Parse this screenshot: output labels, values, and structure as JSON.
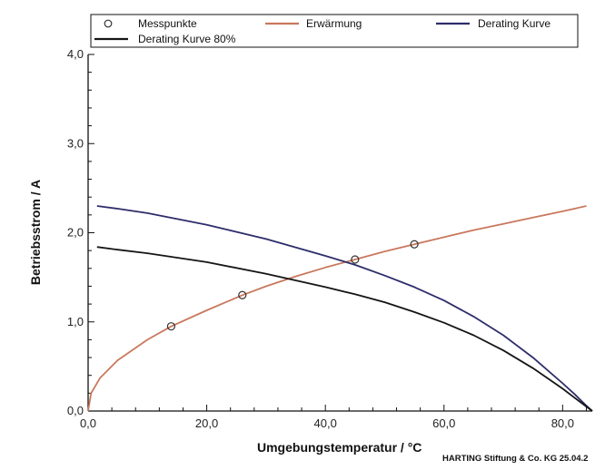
{
  "chart_data": {
    "type": "line",
    "title": "",
    "xlabel": "Umgebungstemperatur / °C",
    "ylabel": "Betriebsstrom / A",
    "xlim": [
      0,
      85
    ],
    "ylim": [
      0,
      4
    ],
    "x_ticks": [
      0,
      20,
      40,
      60,
      80
    ],
    "x_tick_labels": [
      "0,0",
      "20,0",
      "40,0",
      "60,0",
      "80,0"
    ],
    "y_ticks": [
      0,
      1,
      2,
      3,
      4
    ],
    "y_tick_labels": [
      "0,0",
      "1,0",
      "2,0",
      "3,0",
      "4,0"
    ],
    "grid": false,
    "legend_position": "top",
    "series": [
      {
        "name": "Messpunkte",
        "kind": "markers",
        "color": "#333333",
        "points": [
          [
            14,
            0.95
          ],
          [
            26,
            1.3
          ],
          [
            45,
            1.7
          ],
          [
            55,
            1.87
          ]
        ]
      },
      {
        "name": "Erwärmung",
        "kind": "line",
        "color": "#c9785d",
        "points": [
          [
            0,
            0
          ],
          [
            0.5,
            0.2
          ],
          [
            2,
            0.37
          ],
          [
            5,
            0.57
          ],
          [
            10,
            0.8
          ],
          [
            14,
            0.95
          ],
          [
            20,
            1.13
          ],
          [
            26,
            1.3
          ],
          [
            30,
            1.4
          ],
          [
            35,
            1.51
          ],
          [
            40,
            1.61
          ],
          [
            45,
            1.7
          ],
          [
            50,
            1.79
          ],
          [
            55,
            1.87
          ],
          [
            60,
            1.95
          ],
          [
            65,
            2.03
          ],
          [
            70,
            2.1
          ],
          [
            75,
            2.17
          ],
          [
            80,
            2.24
          ],
          [
            84,
            2.3
          ]
        ]
      },
      {
        "name": "Derating Kurve",
        "kind": "line",
        "color": "#2d2d6b",
        "points": [
          [
            1.5,
            2.3
          ],
          [
            5,
            2.27
          ],
          [
            10,
            2.22
          ],
          [
            20,
            2.09
          ],
          [
            30,
            1.93
          ],
          [
            40,
            1.74
          ],
          [
            45,
            1.64
          ],
          [
            50,
            1.52
          ],
          [
            55,
            1.39
          ],
          [
            60,
            1.24
          ],
          [
            65,
            1.06
          ],
          [
            70,
            0.85
          ],
          [
            75,
            0.6
          ],
          [
            80,
            0.31
          ],
          [
            82,
            0.19
          ],
          [
            84,
            0.06
          ],
          [
            85,
            0
          ]
        ]
      },
      {
        "name": "Derating Kurve 80%",
        "kind": "line",
        "color": "#151515",
        "points": [
          [
            1.5,
            1.84
          ],
          [
            5,
            1.81
          ],
          [
            10,
            1.77
          ],
          [
            20,
            1.67
          ],
          [
            30,
            1.54
          ],
          [
            40,
            1.39
          ],
          [
            45,
            1.31
          ],
          [
            50,
            1.22
          ],
          [
            55,
            1.11
          ],
          [
            60,
            0.99
          ],
          [
            65,
            0.85
          ],
          [
            70,
            0.68
          ],
          [
            75,
            0.48
          ],
          [
            80,
            0.25
          ],
          [
            82,
            0.15
          ],
          [
            84,
            0.05
          ],
          [
            85,
            0
          ]
        ]
      }
    ],
    "footer": "HARTING Stiftung & Co. KG 25.04.2"
  }
}
